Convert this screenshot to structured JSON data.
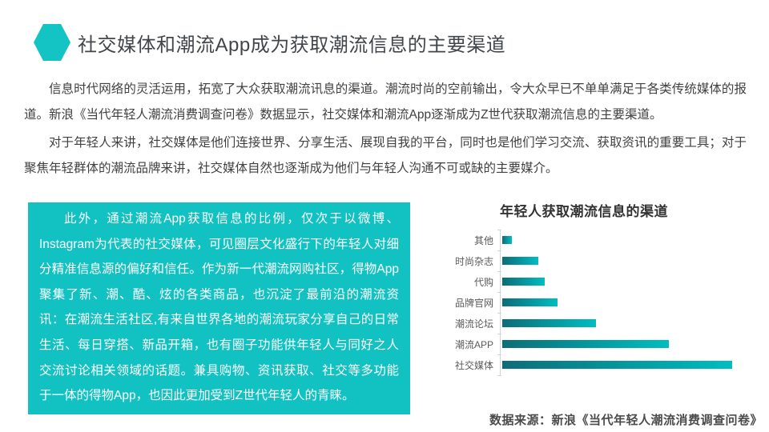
{
  "slide": {
    "title": "社交媒体和潮流App成为获取潮流信息的主要渠道",
    "paragraphs": [
      "信息时代网络的灵活运用，拓宽了大众获取潮流讯息的渠道。潮流时尚的空前输出，令大众早已不单单满足于各类传统媒体的报道。新浪《当代年轻人潮流消费调查问卷》数据显示，社交媒体和潮流App逐渐成为Z世代获取潮流信息的主要渠道。",
      "对于年轻人来讲，社交媒体是他们连接世界、分享生活、展现自我的平台，同时也是他们学习交流、获取资讯的重要工具；对于聚焦年轻群体的潮流品牌来讲，社交媒体自然也逐渐成为他们与年轻人沟通不可或缺的主要媒介。"
    ],
    "highlight_box": {
      "text": "此外，通过潮流App获取信息的比例，仅次于以微博、Instagram为代表的社交媒体，可见圈层文化盛行下的年轻人对细分精准信息源的偏好和信任。作为新一代潮流网购社区，得物App聚集了新、潮、酷、炫的各类商品，也沉淀了最前沿的潮流资讯：在潮流生活社区,有来自世界各地的潮流玩家分享自己的日常生活、每日穿搭、新品开箱，也有圈子功能供年轻人与同好之人交流讨论相关领域的话题。兼具购物、资讯获取、社交等多功能于一体的得物App，也因此更加受到Z世代年轻人的青睐。"
    },
    "source_note": "数据来源：新浪《当代年轻人潮流消费调查问卷》"
  },
  "chart_data": {
    "type": "bar",
    "orientation": "horizontal",
    "title": "年轻人获取潮流信息的渠道",
    "categories": [
      "其他",
      "时尚杂志",
      "代购",
      "品牌官网",
      "潮流论坛",
      "潮流APP",
      "社交媒体"
    ],
    "values": [
      4,
      15.5,
      18.5,
      24,
      40.5,
      72,
      100
    ],
    "xlim": [
      0,
      100
    ],
    "value_labels_shown": false,
    "axis_tick_labels_shown": false,
    "grid": false,
    "legend": false,
    "note": "no numeric axis or data labels visible; values are relative bar lengths scaled to longest bar = 100"
  },
  "colors": {
    "accent_teal": "#14c3c4",
    "highlight_box_bg": "#12c2c3",
    "bar_gradient_start": "#0c6d78",
    "bar_gradient_end": "#00bdc1",
    "title_text": "#41464b",
    "body_text": "#404040",
    "chart_label_text": "#595959"
  }
}
